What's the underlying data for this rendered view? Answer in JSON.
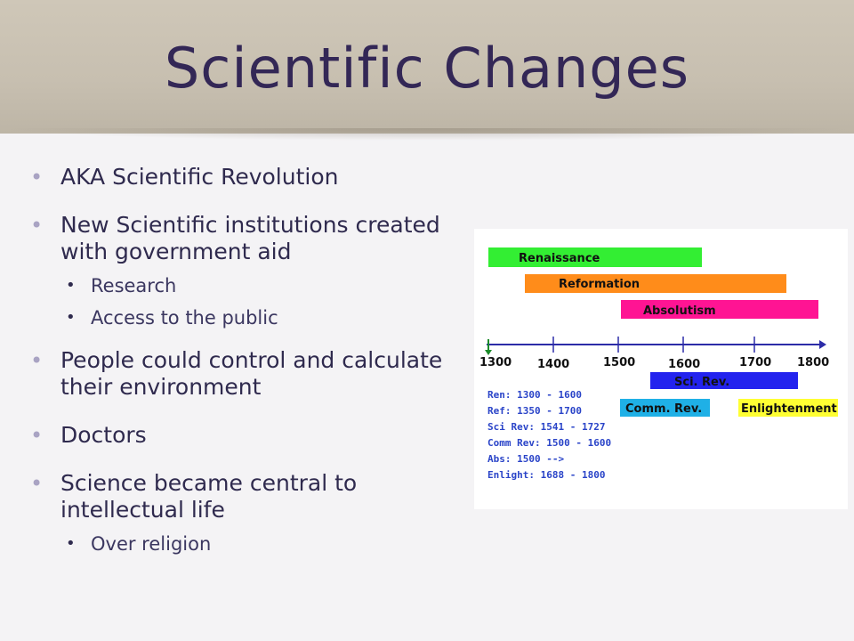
{
  "title": "Scientific Changes",
  "bullets": [
    {
      "text": "AKA Scientific Revolution"
    },
    {
      "text": "New Scientific institutions created with government aid"
    },
    {
      "text": "Research"
    },
    {
      "text": "Access to the public"
    },
    {
      "text": "People could control and calculate their environment"
    },
    {
      "text": "Doctors"
    },
    {
      "text": "Science became central to intellectual life"
    },
    {
      "text": "Over religion"
    }
  ],
  "timeline": {
    "bars": [
      {
        "label": "Renaissance",
        "color": "#33ee33"
      },
      {
        "label": "Reformation",
        "color": "#ff8c1a"
      },
      {
        "label": "Absolutism",
        "color": "#ff1493"
      },
      {
        "label": "Sci. Rev.",
        "color": "#2323ee"
      },
      {
        "label": "Comm. Rev.",
        "color": "#1fb0e6"
      },
      {
        "label": "Enlightenment",
        "color": "#ffff33"
      }
    ],
    "years": [
      "1300",
      "1400",
      "1500",
      "1600",
      "1700",
      "1800"
    ],
    "legend": [
      "Ren: 1300 - 1600",
      "Ref: 1350 - 1700",
      "Sci Rev: 1541 - 1727",
      "Comm Rev: 1500 - 1600",
      "Abs: 1500 -->",
      "Enlight: 1688 - 1800"
    ]
  }
}
